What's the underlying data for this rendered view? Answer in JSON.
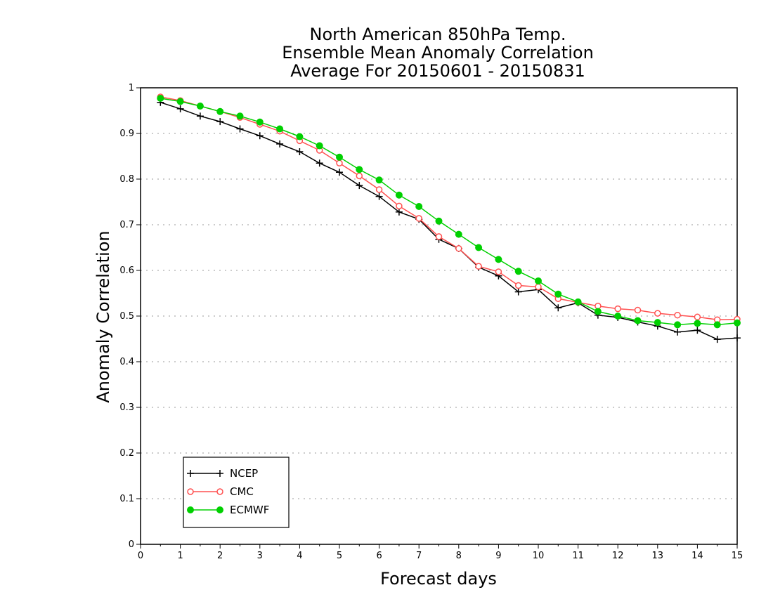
{
  "chart_data": {
    "type": "line",
    "title_lines": [
      "North American 850hPa Temp.",
      "Ensemble Mean Anomaly Correlation",
      "Average For 20150601 - 20150831"
    ],
    "xlabel": "Forecast days",
    "ylabel": "Anomaly Correlation",
    "xlim": [
      0,
      15
    ],
    "ylim": [
      0,
      1
    ],
    "x_ticks": [
      "0",
      "1",
      "2",
      "3",
      "4",
      "5",
      "6",
      "7",
      "8",
      "9",
      "10",
      "11",
      "12",
      "13",
      "14",
      "15"
    ],
    "y_ticks": [
      "0",
      "0.1",
      "0.2",
      "0.3",
      "0.4",
      "0.5",
      "0.6",
      "0.7",
      "0.8",
      "0.9",
      "1"
    ],
    "grid": "horizontal dotted",
    "legend_position": "bottom-left",
    "x": [
      0.5,
      1,
      1.5,
      2,
      2.5,
      3,
      3.5,
      4,
      4.5,
      5,
      5.5,
      6,
      6.5,
      7,
      7.5,
      8,
      8.5,
      9,
      9.5,
      10,
      10.5,
      11,
      11.5,
      12,
      12.5,
      13,
      13.5,
      14,
      14.5,
      15
    ],
    "series": [
      {
        "name": "NCEP",
        "color": "#000000",
        "marker": "plus",
        "values": [
          0.968,
          0.954,
          0.938,
          0.926,
          0.91,
          0.895,
          0.877,
          0.86,
          0.835,
          0.815,
          0.786,
          0.762,
          0.728,
          0.712,
          0.668,
          0.648,
          0.607,
          0.588,
          0.553,
          0.558,
          0.518,
          0.529,
          0.502,
          0.497,
          0.487,
          0.478,
          0.465,
          0.469,
          0.449,
          0.452
        ]
      },
      {
        "name": "CMC",
        "color": "#ff5050",
        "marker": "open-circle",
        "values": [
          0.98,
          0.972,
          0.96,
          0.948,
          0.935,
          0.92,
          0.905,
          0.884,
          0.863,
          0.835,
          0.807,
          0.777,
          0.741,
          0.714,
          0.674,
          0.648,
          0.609,
          0.597,
          0.567,
          0.564,
          0.538,
          0.53,
          0.522,
          0.516,
          0.513,
          0.506,
          0.502,
          0.498,
          0.492,
          0.493
        ]
      },
      {
        "name": "ECMWF",
        "color": "#00d000",
        "marker": "filled-circle",
        "values": [
          0.977,
          0.97,
          0.96,
          0.948,
          0.938,
          0.925,
          0.91,
          0.893,
          0.873,
          0.848,
          0.821,
          0.798,
          0.765,
          0.74,
          0.708,
          0.679,
          0.65,
          0.624,
          0.598,
          0.577,
          0.548,
          0.531,
          0.51,
          0.5,
          0.49,
          0.486,
          0.481,
          0.484,
          0.481,
          0.485
        ]
      }
    ]
  }
}
